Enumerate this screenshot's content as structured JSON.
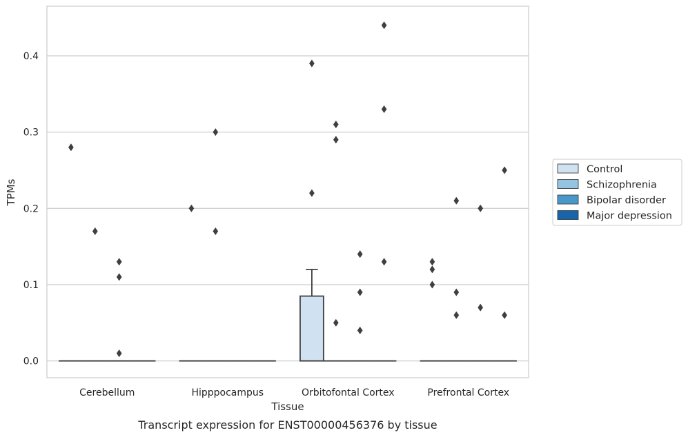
{
  "chart_data": {
    "type": "box",
    "title": "",
    "caption": "Transcript expression for ENST00000456376 by tissue",
    "xlabel": "Tissue",
    "ylabel": "TPMs",
    "ylim": [
      -0.022,
      0.465
    ],
    "yticks": [
      0.0,
      0.1,
      0.2,
      0.3,
      0.4
    ],
    "ytick_labels": [
      "0.0",
      "0.1",
      "0.2",
      "0.3",
      "0.4"
    ],
    "grid": true,
    "legend_position": "right",
    "categories": [
      "Cerebellum",
      "Hipppocampus",
      "Orbitofontal Cortex",
      "Prefrontal Cortex"
    ],
    "series": [
      {
        "name": "Control",
        "color": "#d0e1f2",
        "boxes": [
          {
            "q1": 0,
            "median": 0,
            "q3": 0,
            "whisker_low": 0,
            "whisker_high": 0,
            "outliers": [
              0.28
            ]
          },
          {
            "q1": 0,
            "median": 0,
            "q3": 0,
            "whisker_low": 0,
            "whisker_high": 0,
            "outliers": [
              0.2
            ]
          },
          {
            "q1": 0,
            "median": 0,
            "q3": 0.085,
            "whisker_low": 0,
            "whisker_high": 0.12,
            "outliers": [
              0.39,
              0.22
            ]
          },
          {
            "q1": 0,
            "median": 0,
            "q3": 0,
            "whisker_low": 0,
            "whisker_high": 0,
            "outliers": [
              0.13,
              0.12,
              0.1
            ]
          }
        ]
      },
      {
        "name": "Schizophrenia",
        "color": "#94c4df",
        "boxes": [
          {
            "q1": 0,
            "median": 0,
            "q3": 0,
            "whisker_low": 0,
            "whisker_high": 0,
            "outliers": [
              0.17
            ]
          },
          {
            "q1": 0,
            "median": 0,
            "q3": 0,
            "whisker_low": 0,
            "whisker_high": 0,
            "outliers": [
              0.3,
              0.17
            ]
          },
          {
            "q1": 0,
            "median": 0,
            "q3": 0,
            "whisker_low": 0,
            "whisker_high": 0,
            "outliers": [
              0.31,
              0.29,
              0.05
            ]
          },
          {
            "q1": 0,
            "median": 0,
            "q3": 0,
            "whisker_low": 0,
            "whisker_high": 0,
            "outliers": [
              0.21,
              0.09,
              0.06
            ]
          }
        ]
      },
      {
        "name": "Bipolar disorder",
        "color": "#4a98c9",
        "boxes": [
          {
            "q1": 0,
            "median": 0,
            "q3": 0,
            "whisker_low": 0,
            "whisker_high": 0,
            "outliers": [
              0.13,
              0.11,
              0.01
            ]
          },
          {
            "q1": 0,
            "median": 0,
            "q3": 0,
            "whisker_low": 0,
            "whisker_high": 0,
            "outliers": []
          },
          {
            "q1": 0,
            "median": 0,
            "q3": 0,
            "whisker_low": 0,
            "whisker_high": 0,
            "outliers": [
              0.14,
              0.09,
              0.04
            ]
          },
          {
            "q1": 0,
            "median": 0,
            "q3": 0,
            "whisker_low": 0,
            "whisker_high": 0,
            "outliers": [
              0.2,
              0.07
            ]
          }
        ]
      },
      {
        "name": "Major depression",
        "color": "#1764ab",
        "boxes": [
          {
            "q1": 0,
            "median": 0,
            "q3": 0,
            "whisker_low": 0,
            "whisker_high": 0,
            "outliers": []
          },
          {
            "q1": 0,
            "median": 0,
            "q3": 0,
            "whisker_low": 0,
            "whisker_high": 0,
            "outliers": []
          },
          {
            "q1": 0,
            "median": 0,
            "q3": 0,
            "whisker_low": 0,
            "whisker_high": 0,
            "outliers": [
              0.44,
              0.33,
              0.13
            ]
          },
          {
            "q1": 0,
            "median": 0,
            "q3": 0,
            "whisker_low": 0,
            "whisker_high": 0,
            "outliers": [
              0.25,
              0.06
            ]
          }
        ]
      }
    ],
    "colors": {
      "grid": "#cccccc",
      "frame": "#cccccc",
      "line": "#3f3f3f",
      "background": "#ffffff"
    }
  }
}
